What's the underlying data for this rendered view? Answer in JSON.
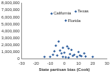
{
  "chart_data": {
    "type": "scatter",
    "x_label": "State partisan bias (Cook)",
    "x": [
      -9,
      8,
      1,
      -4,
      -6,
      2,
      3,
      -1,
      5,
      -3,
      -7,
      10,
      0,
      -2,
      4,
      7,
      -5,
      6,
      12,
      15,
      -8,
      9,
      -10,
      1,
      14,
      20,
      -14,
      11,
      3,
      -1
    ],
    "values": [
      6500000,
      6800000,
      5500000,
      2500000,
      1900000,
      1800000,
      1500000,
      1600000,
      1300000,
      1200000,
      1100000,
      1000000,
      900000,
      800000,
      700000,
      600000,
      500000,
      450000,
      400000,
      350000,
      600000,
      300000,
      300000,
      250000,
      800000,
      300000,
      300000,
      500000,
      200000,
      300000
    ],
    "color": "#2f5f9e",
    "marker": "diamond",
    "annotations": [
      {
        "text": "California",
        "x": -9,
        "y": 6500000
      },
      {
        "text": "Texas",
        "x": 8,
        "y": 6800000
      },
      {
        "text": "Florida",
        "x": 1,
        "y": 5500000
      }
    ],
    "xlim": [
      -30,
      30
    ],
    "xticks": [
      -30,
      -20,
      -10,
      0,
      10,
      20,
      30
    ],
    "ylim": [
      0,
      8000000
    ],
    "yticks": [
      0,
      {
        "value": 1000000,
        "label": "1,000,000"
      },
      {
        "value": 2000000,
        "label": "2,000,000"
      },
      {
        "value": 3000000,
        "label": "3,000,000"
      },
      {
        "value": 4000000,
        "label": "4,000,000"
      },
      {
        "value": 5000000,
        "label": "5,000,000"
      },
      {
        "value": 6000000,
        "label": "6,000,000"
      },
      {
        "value": 7000000,
        "label": "7,000,000"
      },
      {
        "value": 8000000,
        "label": "8,000,000"
      }
    ],
    "grid": false
  }
}
